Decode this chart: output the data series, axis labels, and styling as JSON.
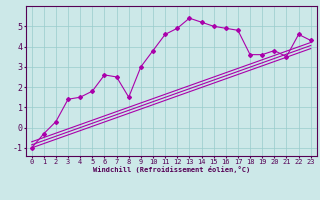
{
  "xlabel": "Windchill (Refroidissement éolien,°C)",
  "bg_color": "#cce8e8",
  "grid_color": "#99cccc",
  "line_color": "#aa00aa",
  "xlim": [
    -0.5,
    23.5
  ],
  "ylim": [
    -1.4,
    6.0
  ],
  "yticks": [
    -1,
    0,
    1,
    2,
    3,
    4,
    5
  ],
  "xticks": [
    0,
    1,
    2,
    3,
    4,
    5,
    6,
    7,
    8,
    9,
    10,
    11,
    12,
    13,
    14,
    15,
    16,
    17,
    18,
    19,
    20,
    21,
    22,
    23
  ],
  "series1_x": [
    0,
    1,
    2,
    3,
    4,
    5,
    6,
    7,
    8,
    9,
    10,
    11,
    12,
    13,
    14,
    15,
    16,
    17,
    18,
    19,
    20,
    21,
    22,
    23
  ],
  "series1_y": [
    -1.0,
    -0.3,
    0.3,
    1.4,
    1.5,
    1.8,
    2.6,
    2.5,
    1.5,
    3.0,
    3.8,
    4.6,
    4.9,
    5.4,
    5.2,
    5.0,
    4.9,
    4.8,
    3.6,
    3.6,
    3.8,
    3.5,
    4.6,
    4.3
  ],
  "trend_lines": [
    {
      "x": [
        0,
        23
      ],
      "y": [
        -1.0,
        3.9
      ]
    },
    {
      "x": [
        0,
        23
      ],
      "y": [
        -0.85,
        4.05
      ]
    },
    {
      "x": [
        0,
        23
      ],
      "y": [
        -0.7,
        4.2
      ]
    }
  ],
  "tick_fontsize": 5,
  "xlabel_fontsize": 5,
  "spine_color": "#550055",
  "tick_color": "#550055",
  "label_color": "#550055"
}
